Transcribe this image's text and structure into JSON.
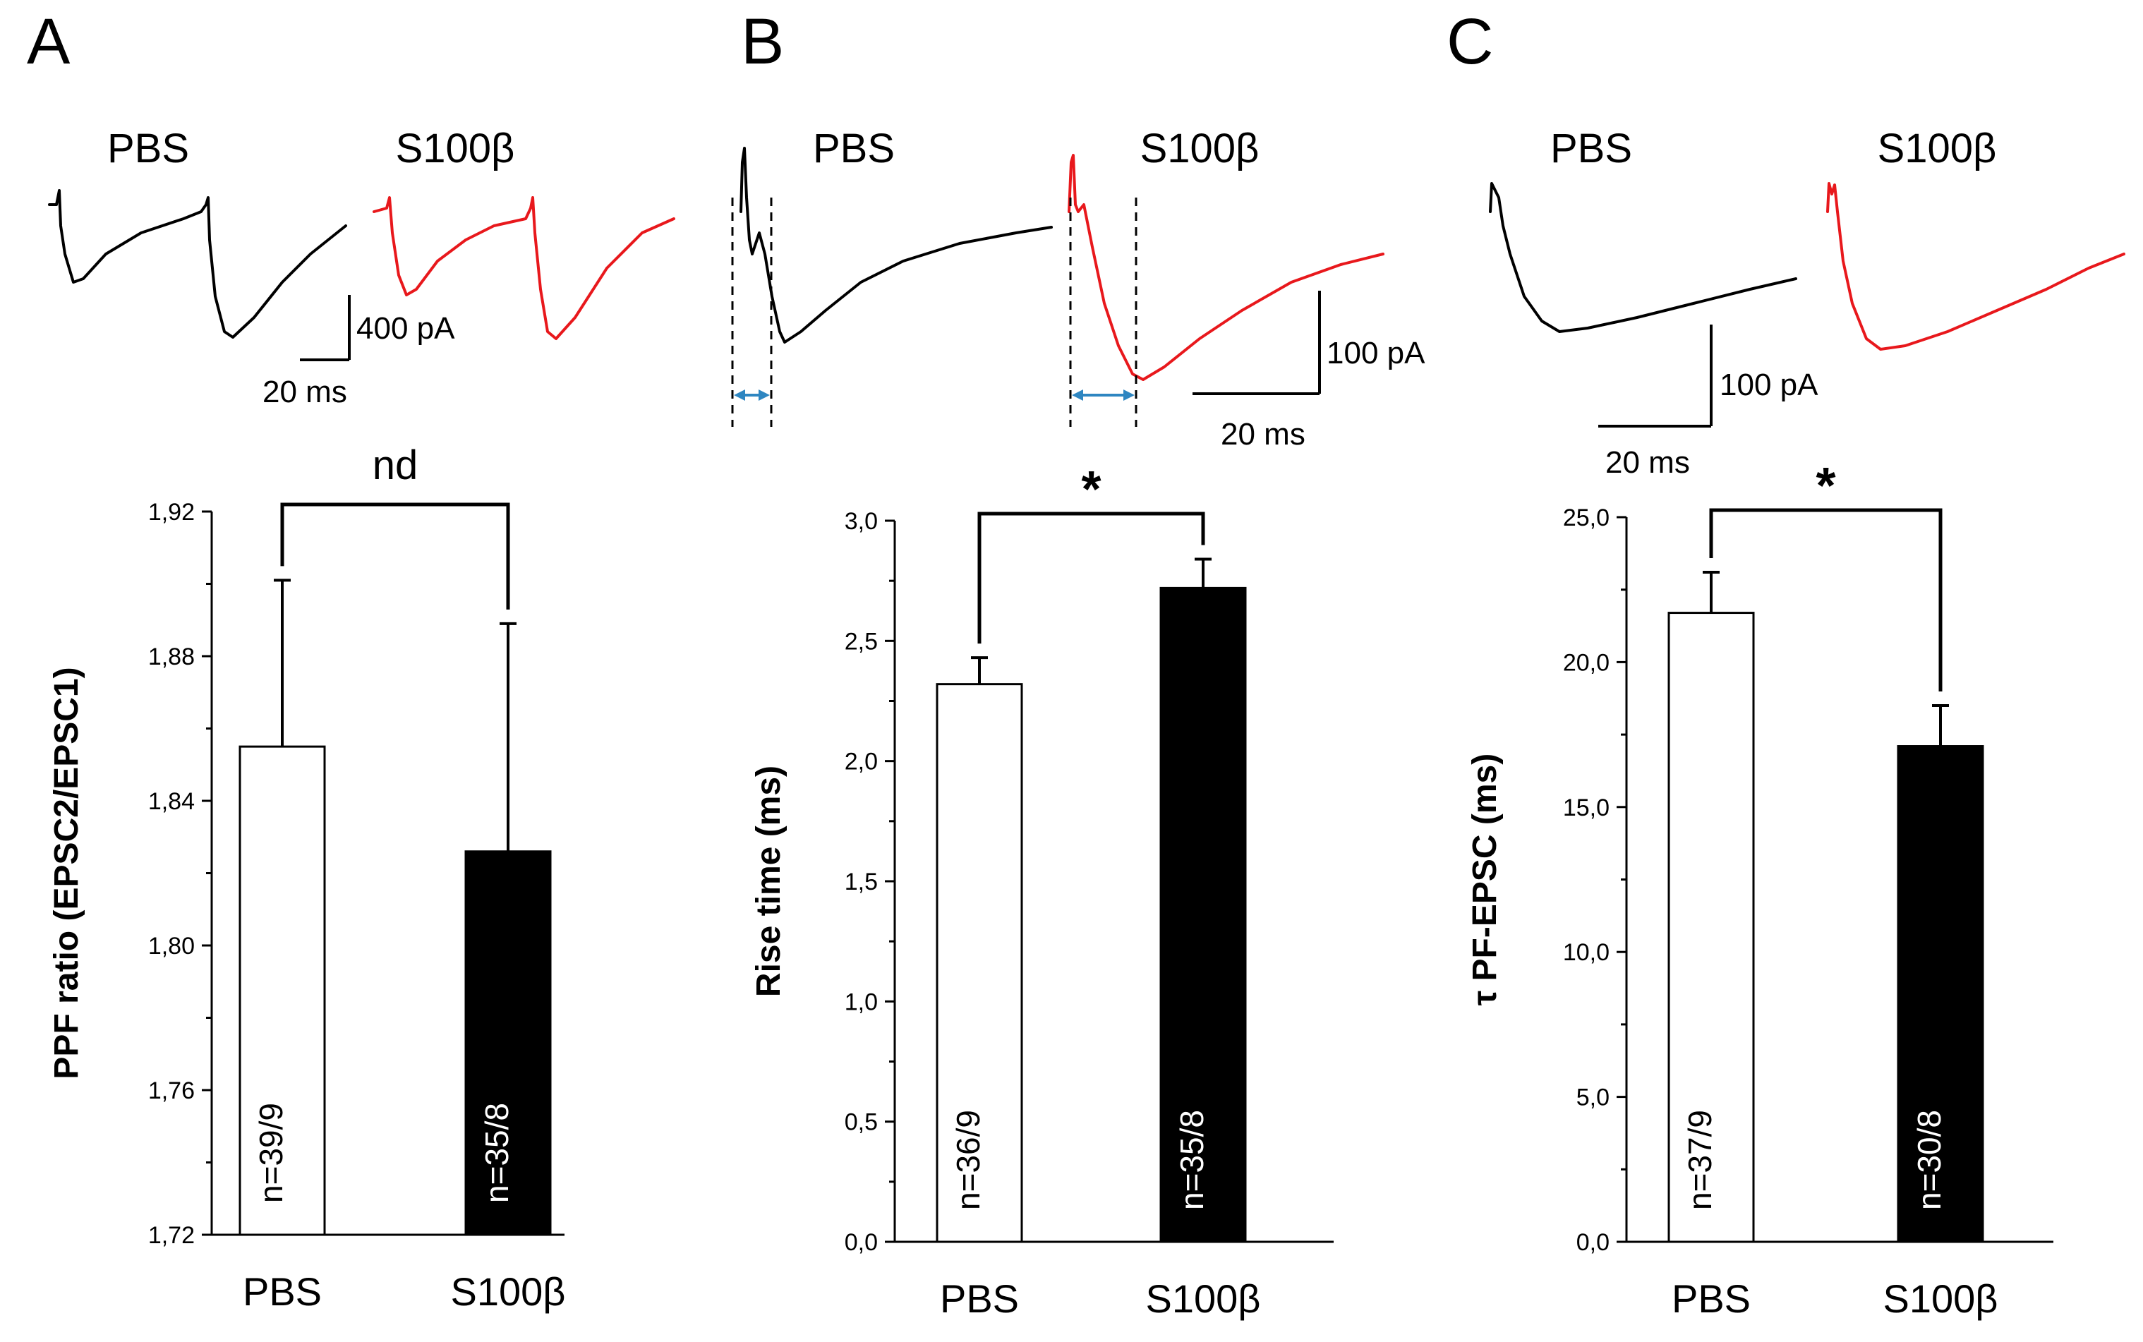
{
  "colors": {
    "pbs_trace": "#000000",
    "s100b_trace": "#e8181c",
    "time_marker": "#2e86c1",
    "pbs_bar": "#ffffff",
    "s100b_bar": "#000000"
  },
  "panels": [
    {
      "letter": "A",
      "trace_labels": [
        "PBS",
        "S100β"
      ],
      "scale_amplitude": "400 pA",
      "scale_time": "20 ms"
    },
    {
      "letter": "B",
      "trace_labels": [
        "PBS",
        "S100β"
      ],
      "scale_amplitude": "100 pA",
      "scale_time": "20 ms"
    },
    {
      "letter": "C",
      "trace_labels": [
        "PBS",
        "S100β"
      ],
      "scale_amplitude": "100 pA",
      "scale_time": "20 ms"
    }
  ],
  "chart_data": [
    {
      "type": "bar",
      "categories": [
        "PBS",
        "S100β"
      ],
      "values": [
        1.855,
        1.826
      ],
      "errors": [
        0.046,
        0.063
      ],
      "n_labels": [
        "n=39/9",
        "n=35/8"
      ],
      "ylabel": "PPF ratio (EPSC2/EPSC1)",
      "ylim": [
        1.72,
        1.92
      ],
      "yticks": [
        "1,72",
        "1,76",
        "1,80",
        "1,84",
        "1,88",
        "1,92"
      ],
      "significance": "nd"
    },
    {
      "type": "bar",
      "categories": [
        "PBS",
        "S100β"
      ],
      "values": [
        2.32,
        2.72
      ],
      "errors": [
        0.11,
        0.12
      ],
      "n_labels": [
        "n=36/9",
        "n=35/8"
      ],
      "ylabel": "Rise time (ms)",
      "ylim": [
        0.0,
        3.0
      ],
      "yticks": [
        "0,0",
        "0,5",
        "1,0",
        "1,5",
        "2,0",
        "2,5",
        "3,0"
      ],
      "significance": "*"
    },
    {
      "type": "bar",
      "categories": [
        "PBS",
        "S100β"
      ],
      "values": [
        21.7,
        17.1
      ],
      "errors": [
        1.4,
        1.4
      ],
      "n_labels": [
        "n=37/9",
        "n=30/8"
      ],
      "ylabel": "τ PF-EPSC (ms)",
      "ylim": [
        0.0,
        25.0
      ],
      "yticks": [
        "0,0",
        "5,0",
        "10,0",
        "15,0",
        "20,0",
        "25,0"
      ],
      "significance": "*"
    }
  ]
}
